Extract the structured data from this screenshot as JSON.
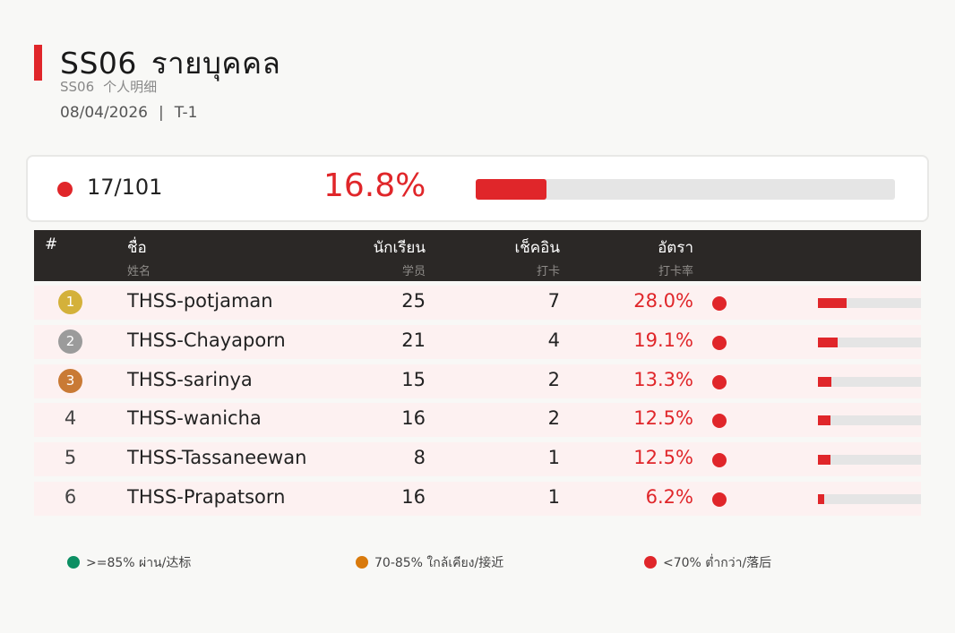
{
  "header": {
    "code": "SS06",
    "title_th": "รายบุคคล",
    "code_sub": "SS06",
    "title_cn": "个人明细",
    "date": "08/04/2026",
    "separator": "|",
    "period": "T-1"
  },
  "summary": {
    "count": "17/101",
    "percent": "16.8%",
    "rate": 0.168,
    "status_color": "#e0262a"
  },
  "table": {
    "columns": [
      {
        "label": "#",
        "sub": ""
      },
      {
        "label": "ชื่อ",
        "sub": "姓名"
      },
      {
        "label": "นักเรียน",
        "sub": "学员"
      },
      {
        "label": "เช็คอิน",
        "sub": "打卡"
      },
      {
        "label": "อัตรา",
        "sub": "打卡率"
      }
    ],
    "rows": [
      {
        "rank": "1",
        "name": "THSS-potjaman",
        "students": "25",
        "checkins": "7",
        "rate": "28.0%",
        "rate_value": 0.28,
        "badge_color": "#d4b13a",
        "status_color": "#e0262a"
      },
      {
        "rank": "2",
        "name": "THSS-Chayaporn",
        "students": "21",
        "checkins": "4",
        "rate": "19.1%",
        "rate_value": 0.191,
        "badge_color": "#9b9b9b",
        "status_color": "#e0262a"
      },
      {
        "rank": "3",
        "name": "THSS-sarinya",
        "students": "15",
        "checkins": "2",
        "rate": "13.3%",
        "rate_value": 0.133,
        "badge_color": "#c97a35",
        "status_color": "#e0262a"
      },
      {
        "rank": "4",
        "name": "THSS-wanicha",
        "students": "16",
        "checkins": "2",
        "rate": "12.5%",
        "rate_value": 0.125,
        "badge_color": "",
        "status_color": "#e0262a"
      },
      {
        "rank": "5",
        "name": "THSS-Tassaneewan",
        "students": "8",
        "checkins": "1",
        "rate": "12.5%",
        "rate_value": 0.125,
        "badge_color": "",
        "status_color": "#e0262a"
      },
      {
        "rank": "6",
        "name": "THSS-Prapatsorn",
        "students": "16",
        "checkins": "1",
        "rate": "6.2%",
        "rate_value": 0.062,
        "badge_color": "",
        "status_color": "#e0262a"
      }
    ]
  },
  "legend": [
    {
      "label": ">=85% ผ่าน/达标",
      "color": "#0c8f63"
    },
    {
      "label": "70-85% ใกล้เคียง/接近",
      "color": "#d97a0c"
    },
    {
      "label": "<70% ต่ำกว่า/落后",
      "color": "#e0262a"
    }
  ]
}
